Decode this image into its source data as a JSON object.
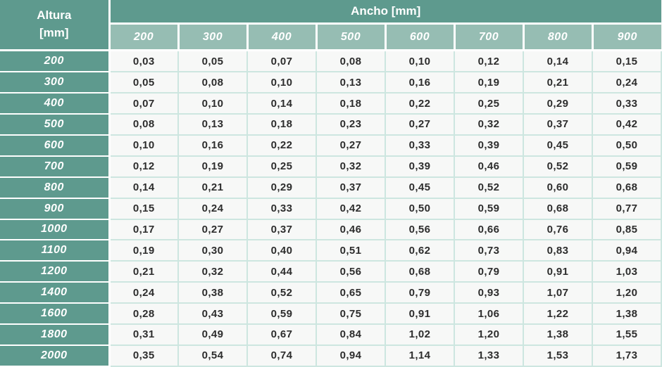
{
  "chart_data": {
    "type": "table",
    "row_axis_label": "Altura [mm]",
    "col_axis_label": "Ancho [mm]",
    "columns": [
      "200",
      "300",
      "400",
      "500",
      "600",
      "700",
      "800",
      "900"
    ],
    "rows": [
      {
        "label": "200",
        "values": [
          "0,03",
          "0,05",
          "0,07",
          "0,08",
          "0,10",
          "0,12",
          "0,14",
          "0,15"
        ]
      },
      {
        "label": "300",
        "values": [
          "0,05",
          "0,08",
          "0,10",
          "0,13",
          "0,16",
          "0,19",
          "0,21",
          "0,24"
        ]
      },
      {
        "label": "400",
        "values": [
          "0,07",
          "0,10",
          "0,14",
          "0,18",
          "0,22",
          "0,25",
          "0,29",
          "0,33"
        ]
      },
      {
        "label": "500",
        "values": [
          "0,08",
          "0,13",
          "0,18",
          "0,23",
          "0,27",
          "0,32",
          "0,37",
          "0,42"
        ]
      },
      {
        "label": "600",
        "values": [
          "0,10",
          "0,16",
          "0,22",
          "0,27",
          "0,33",
          "0,39",
          "0,45",
          "0,50"
        ]
      },
      {
        "label": "700",
        "values": [
          "0,12",
          "0,19",
          "0,25",
          "0,32",
          "0,39",
          "0,46",
          "0,52",
          "0,59"
        ]
      },
      {
        "label": "800",
        "values": [
          "0,14",
          "0,21",
          "0,29",
          "0,37",
          "0,45",
          "0,52",
          "0,60",
          "0,68"
        ]
      },
      {
        "label": "900",
        "values": [
          "0,15",
          "0,24",
          "0,33",
          "0,42",
          "0,50",
          "0,59",
          "0,68",
          "0,77"
        ]
      },
      {
        "label": "1000",
        "values": [
          "0,17",
          "0,27",
          "0,37",
          "0,46",
          "0,56",
          "0,66",
          "0,76",
          "0,85"
        ]
      },
      {
        "label": "1100",
        "values": [
          "0,19",
          "0,30",
          "0,40",
          "0,51",
          "0,62",
          "0,73",
          "0,83",
          "0,94"
        ]
      },
      {
        "label": "1200",
        "values": [
          "0,21",
          "0,32",
          "0,44",
          "0,56",
          "0,68",
          "0,79",
          "0,91",
          "1,03"
        ]
      },
      {
        "label": "1400",
        "values": [
          "0,24",
          "0,38",
          "0,52",
          "0,65",
          "0,79",
          "0,93",
          "1,07",
          "1,20"
        ]
      },
      {
        "label": "1600",
        "values": [
          "0,28",
          "0,43",
          "0,59",
          "0,75",
          "0,91",
          "1,06",
          "1,22",
          "1,38"
        ]
      },
      {
        "label": "1800",
        "values": [
          "0,31",
          "0,49",
          "0,67",
          "0,84",
          "1,02",
          "1,20",
          "1,38",
          "1,55"
        ]
      },
      {
        "label": "2000",
        "values": [
          "0,35",
          "0,54",
          "0,74",
          "0,94",
          "1,14",
          "1,33",
          "1,53",
          "1,73"
        ]
      }
    ]
  },
  "colors": {
    "header_bg": "#5E9A8E",
    "subheader_bg": "#96BDB3",
    "cell_bg": "#F7F8F7",
    "grid": "#CDE6E0",
    "text": "#2D2D2D",
    "header_text": "#FFFFFF"
  }
}
